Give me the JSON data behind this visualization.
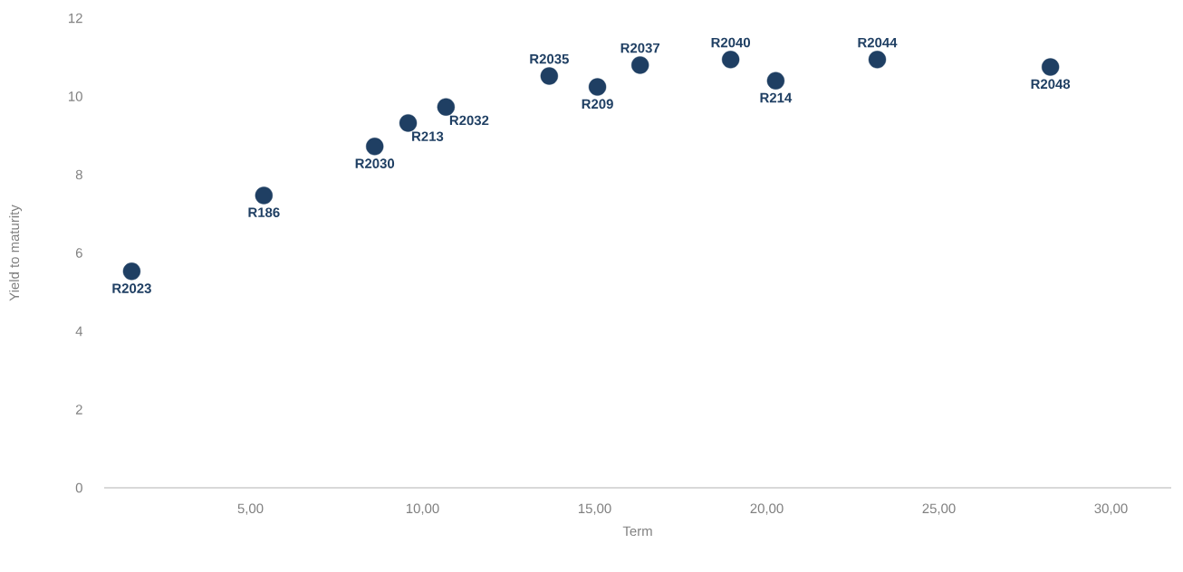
{
  "chart_data": {
    "type": "scatter",
    "xlabel": "Term",
    "ylabel": "Yield to maturity",
    "x": [
      1.55,
      5.39,
      8.61,
      9.58,
      10.68,
      13.68,
      15.08,
      16.32,
      18.95,
      20.26,
      23.21,
      28.24
    ],
    "values": [
      5.53,
      7.47,
      8.72,
      9.32,
      9.73,
      10.52,
      10.24,
      10.8,
      10.94,
      10.4,
      10.94,
      10.75
    ],
    "color": "#1f3f63",
    "annotations": [
      {
        "text": "R2023",
        "x": 1.55,
        "y": 5.53
      },
      {
        "text": "R186",
        "x": 5.39,
        "y": 7.47
      },
      {
        "text": "R2030",
        "x": 8.61,
        "y": 8.72
      },
      {
        "text": "R213",
        "x": 9.58,
        "y": 9.32
      },
      {
        "text": "R2032",
        "x": 10.68,
        "y": 9.73
      },
      {
        "text": "R2035",
        "x": 13.68,
        "y": 10.52
      },
      {
        "text": "R209",
        "x": 15.08,
        "y": 10.24
      },
      {
        "text": "R2037",
        "x": 16.32,
        "y": 10.8
      },
      {
        "text": "R2040",
        "x": 18.95,
        "y": 10.94
      },
      {
        "text": "R214",
        "x": 20.26,
        "y": 10.4
      },
      {
        "text": "R2044",
        "x": 23.21,
        "y": 10.94
      },
      {
        "text": "R2048",
        "x": 28.24,
        "y": 10.75
      }
    ],
    "xlim": [
      0.75,
      31.75
    ],
    "xticks": [
      {
        "value": 5,
        "label": "5,00"
      },
      {
        "value": 10,
        "label": "10,00"
      },
      {
        "value": 15,
        "label": "15,00"
      },
      {
        "value": 20,
        "label": "20,00"
      },
      {
        "value": 25,
        "label": "25,00"
      },
      {
        "value": 30,
        "label": "30,00"
      }
    ],
    "ylim": [
      0,
      12
    ],
    "yticks": [
      0,
      2,
      4,
      6,
      8,
      10,
      12
    ]
  }
}
